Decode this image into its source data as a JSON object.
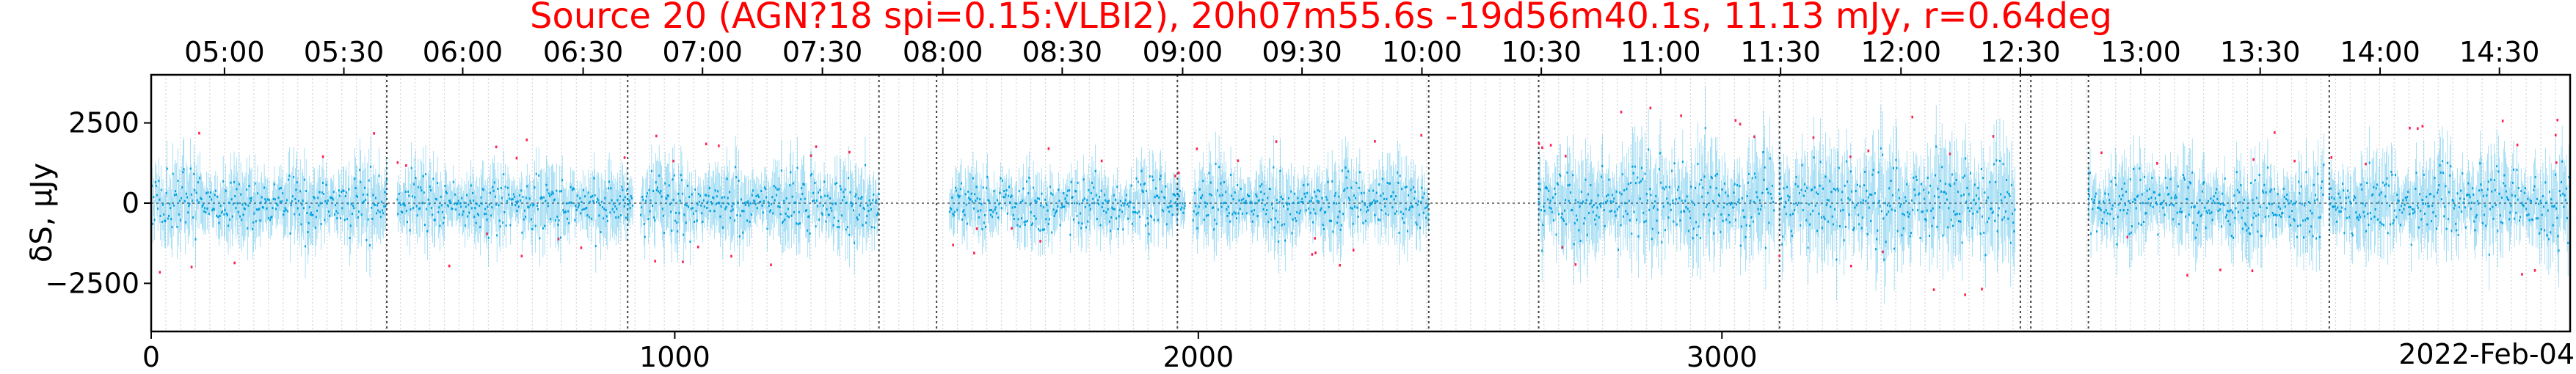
{
  "chart_data": {
    "type": "scatter",
    "title": "Source 20 (AGN?18 spi=0.15:VLBI2), 20h07m55.6s -19d56m40.1s, 11.13 mJy, r=0.64deg",
    "ylabel": "δS, μJy",
    "xlabel": "",
    "date_label": "2022-Feb-04",
    "xlim": [
      0,
      4620
    ],
    "ylim": [
      -4000,
      4000
    ],
    "x_ticks": [
      0,
      1000,
      2000,
      3000
    ],
    "y_ticks": [
      2500,
      0,
      -2500
    ],
    "top_ticks": [
      {
        "x": 140,
        "label": "05:00"
      },
      {
        "x": 368,
        "label": "05:30"
      },
      {
        "x": 595,
        "label": "06:00"
      },
      {
        "x": 825,
        "label": "06:30"
      },
      {
        "x": 1053,
        "label": "07:00"
      },
      {
        "x": 1282,
        "label": "07:30"
      },
      {
        "x": 1512,
        "label": "08:00"
      },
      {
        "x": 1740,
        "label": "08:30"
      },
      {
        "x": 1970,
        "label": "09:00"
      },
      {
        "x": 2198,
        "label": "09:30"
      },
      {
        "x": 2427,
        "label": "10:00"
      },
      {
        "x": 2655,
        "label": "10:30"
      },
      {
        "x": 2883,
        "label": "11:00"
      },
      {
        "x": 3112,
        "label": "11:30"
      },
      {
        "x": 3342,
        "label": "12:00"
      },
      {
        "x": 3570,
        "label": "12:30"
      },
      {
        "x": 3800,
        "label": "13:00"
      },
      {
        "x": 4028,
        "label": "13:30"
      },
      {
        "x": 4257,
        "label": "14:00"
      },
      {
        "x": 4485,
        "label": "14:30"
      }
    ],
    "scan_boundaries": [
      0,
      450,
      910,
      1390,
      1500,
      1960,
      2440,
      2650,
      3110,
      3570,
      3590,
      3700,
      4160,
      4620
    ],
    "segments": [
      {
        "x0": 0,
        "x1": 450,
        "sigma": 420
      },
      {
        "x0": 470,
        "x1": 920,
        "sigma": 380
      },
      {
        "x0": 935,
        "x1": 1390,
        "sigma": 420
      },
      {
        "x0": 1525,
        "x1": 1975,
        "sigma": 350
      },
      {
        "x0": 1990,
        "x1": 2440,
        "sigma": 420
      },
      {
        "x0": 2650,
        "x1": 3100,
        "sigma": 550
      },
      {
        "x0": 3110,
        "x1": 3560,
        "sigma": 580
      },
      {
        "x0": 3700,
        "x1": 4150,
        "sigma": 450
      },
      {
        "x0": 4160,
        "x1": 4620,
        "sigma": 480
      }
    ],
    "series": [
      {
        "name": "",
        "color": "#00a0e0",
        "role": "main-dots"
      },
      {
        "name": "",
        "color": "#ff2050",
        "role": "outliers"
      }
    ],
    "zero_line": 0,
    "grid": true
  }
}
